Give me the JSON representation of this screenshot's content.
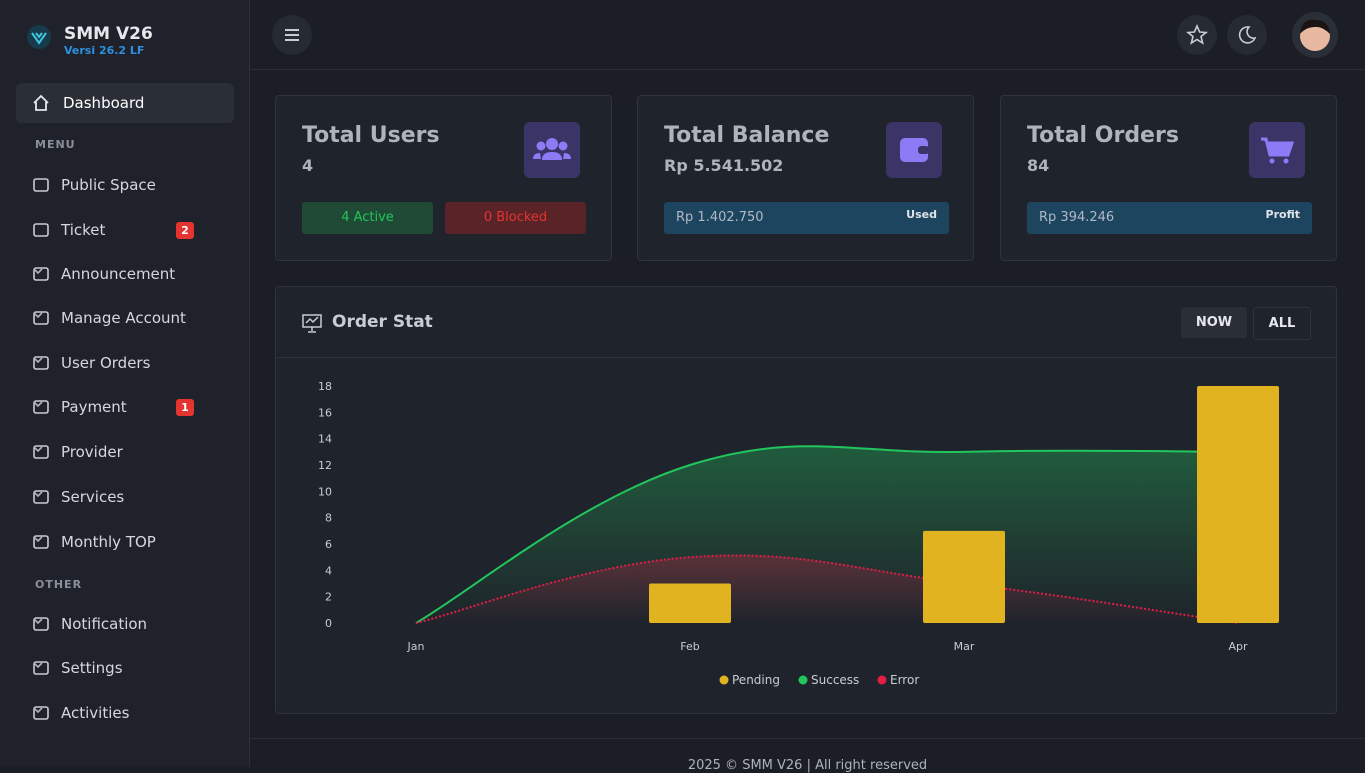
{
  "brand": {
    "name": "SMM V26",
    "version": "Versi 26.2 LF"
  },
  "sidebar": {
    "active": "Dashboard",
    "sections": [
      {
        "label": "MENU",
        "items": [
          {
            "label": "Public Space"
          },
          {
            "label": "Ticket",
            "badge": "2"
          },
          {
            "label": "Announcement",
            "expandable": true
          },
          {
            "label": "Manage Account",
            "expandable": true
          },
          {
            "label": "User Orders",
            "expandable": true
          },
          {
            "label": "Payment",
            "badge": "1",
            "expandable": true
          },
          {
            "label": "Provider",
            "expandable": true
          },
          {
            "label": "Services",
            "expandable": true
          },
          {
            "label": "Monthly TOP",
            "expandable": true
          }
        ]
      },
      {
        "label": "OTHER",
        "items": [
          {
            "label": "Notification",
            "expandable": true
          },
          {
            "label": "Settings",
            "expandable": true
          },
          {
            "label": "Activities",
            "expandable": true
          }
        ]
      }
    ]
  },
  "cards": [
    {
      "title": "Total Users",
      "value": "4",
      "active": "4 Active",
      "blocked": "0 Blocked"
    },
    {
      "title": "Total Balance",
      "value": "Rp 5.541.502",
      "bar_value": "Rp 1.402.750",
      "bar_label": "Used"
    },
    {
      "title": "Total Orders",
      "value": "84",
      "bar_value": "Rp 394.246",
      "bar_label": "Profit"
    }
  ],
  "chart_data": {
    "type": "bar-line",
    "title": "Order Stat",
    "buttons": [
      "NOW",
      "ALL"
    ],
    "categories": [
      "Jan",
      "Feb",
      "Mar",
      "Apr"
    ],
    "series": [
      {
        "name": "Pending",
        "color": "#e2b320",
        "kind": "bar",
        "values": [
          0,
          3,
          7,
          18
        ]
      },
      {
        "name": "Success",
        "color": "#22c55e",
        "kind": "line",
        "values": [
          0,
          12,
          13,
          13
        ]
      },
      {
        "name": "Error",
        "color": "#e11d48",
        "kind": "dotted",
        "values": [
          0,
          5,
          3,
          0
        ]
      }
    ],
    "ylim": [
      0,
      18
    ],
    "yticks": [
      0,
      2,
      4,
      6,
      8,
      10,
      12,
      14,
      16,
      18
    ]
  },
  "footer": "2025 © SMM V26 | All right reserved"
}
